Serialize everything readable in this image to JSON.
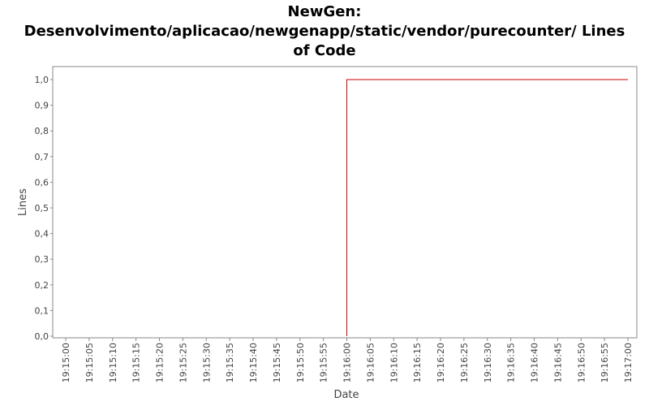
{
  "chart_data": {
    "type": "line",
    "title_lines": [
      "NewGen:",
      "Desenvolvimento/aplicacao/newgenapp/static/vendor/purecounter/ Lines",
      "of Code"
    ],
    "xlabel": "Date",
    "ylabel": "Lines",
    "x_ticks": [
      "19:15:00",
      "19:15:05",
      "19:15:10",
      "19:15:15",
      "19:15:20",
      "19:15:25",
      "19:15:30",
      "19:15:35",
      "19:15:40",
      "19:15:45",
      "19:15:50",
      "19:15:55",
      "19:16:00",
      "19:16:05",
      "19:16:10",
      "19:16:15",
      "19:16:20",
      "19:16:25",
      "19:16:30",
      "19:16:35",
      "19:16:40",
      "19:16:45",
      "19:16:50",
      "19:16:55",
      "19:17:00"
    ],
    "y_ticks": [
      "0,0",
      "0,1",
      "0,2",
      "0,3",
      "0,4",
      "0,5",
      "0,6",
      "0,7",
      "0,8",
      "0,9",
      "1,0"
    ],
    "xlim": [
      "19:15:00",
      "19:17:00"
    ],
    "ylim": [
      0,
      1
    ],
    "series": [
      {
        "color": "#cc0000",
        "points": [
          {
            "x": "19:16:00",
            "y": 0
          },
          {
            "x": "19:16:00",
            "y": 1
          },
          {
            "x": "19:17:00",
            "y": 1
          }
        ]
      }
    ],
    "grid": false,
    "legend": "none"
  }
}
